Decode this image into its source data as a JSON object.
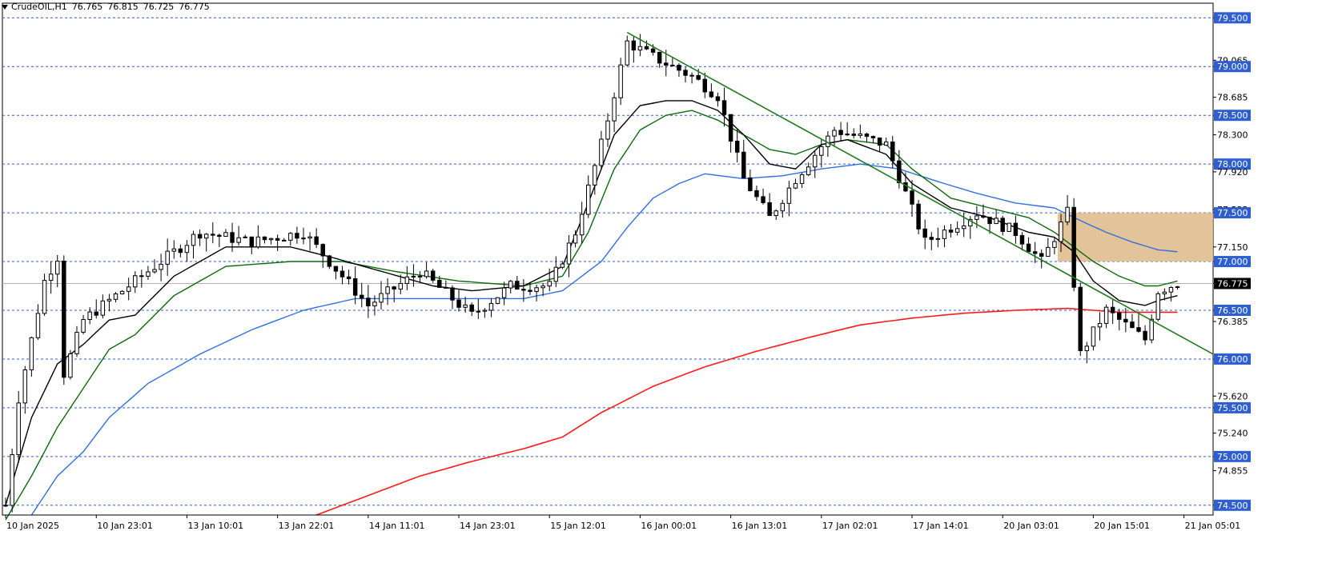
{
  "header": {
    "symbol": "CrudeOIL,H1",
    "open": "76.765",
    "high": "76.815",
    "low": "76.725",
    "close": "76.775"
  },
  "colors": {
    "background": "#ffffff",
    "grid": "#2e5fd1",
    "bull": "#000000",
    "bear": "#000000",
    "ema_fast": "#000000",
    "ema_mid": "#0a6a0a",
    "ema_slow": "#2f6fe0",
    "ema_long": "#ff1a1a",
    "trendline": "#1f7a1f",
    "zone": "#deb887",
    "current_price_label": "#000000"
  },
  "chart_data": {
    "type": "candlestick",
    "symbol": "CrudeOIL",
    "timeframe": "H1",
    "y_range": [
      74.4,
      79.65
    ],
    "current_price": 76.775,
    "price_ticks": [
      "79.500",
      "79.065",
      "79.000",
      "78.685",
      "78.500",
      "78.300",
      "78.000",
      "77.920",
      "77.535",
      "77.500",
      "77.150",
      "77.000",
      "76.775",
      "76.500",
      "76.385",
      "76.000",
      "75.620",
      "75.500",
      "75.240",
      "75.000",
      "74.855",
      "74.500"
    ],
    "level_ticks": [
      79.5,
      79.0,
      78.5,
      78.0,
      77.5,
      77.0,
      76.5,
      76.0,
      75.5,
      75.0,
      74.5
    ],
    "time_labels": [
      "10 Jan 2025",
      "10 Jan 23:01",
      "13 Jan 10:01",
      "13 Jan 22:01",
      "14 Jan 11:01",
      "14 Jan 23:01",
      "15 Jan 12:01",
      "16 Jan 00:01",
      "16 Jan 13:01",
      "17 Jan 02:01",
      "17 Jan 14:01",
      "20 Jan 03:01",
      "20 Jan 15:01",
      "21 Jan 05:01"
    ],
    "time_label_bars": [
      0,
      14,
      28,
      42,
      56,
      70,
      84,
      98,
      112,
      126,
      140,
      154,
      168,
      182
    ],
    "bar_count": 187,
    "price_path": [
      [
        0,
        74.5
      ],
      [
        2,
        75.6
      ],
      [
        6,
        76.8
      ],
      [
        8,
        77.05
      ],
      [
        9,
        75.85
      ],
      [
        12,
        76.4
      ],
      [
        16,
        76.6
      ],
      [
        22,
        76.9
      ],
      [
        30,
        77.3
      ],
      [
        38,
        77.2
      ],
      [
        46,
        77.3
      ],
      [
        56,
        76.55
      ],
      [
        64,
        76.9
      ],
      [
        72,
        76.45
      ],
      [
        78,
        76.75
      ],
      [
        84,
        76.75
      ],
      [
        88,
        77.3
      ],
      [
        92,
        78.2
      ],
      [
        96,
        79.25
      ],
      [
        100,
        79.1
      ],
      [
        106,
        78.9
      ],
      [
        110,
        78.7
      ],
      [
        114,
        77.85
      ],
      [
        118,
        77.45
      ],
      [
        122,
        77.85
      ],
      [
        128,
        78.35
      ],
      [
        136,
        78.2
      ],
      [
        142,
        77.2
      ],
      [
        146,
        77.35
      ],
      [
        150,
        77.5
      ],
      [
        156,
        77.3
      ],
      [
        160,
        77.0
      ],
      [
        164,
        77.5
      ],
      [
        166,
        76.05
      ],
      [
        170,
        76.5
      ],
      [
        176,
        76.2
      ],
      [
        178,
        76.7
      ],
      [
        181,
        76.78
      ]
    ],
    "ema_fast_path": [
      [
        0,
        74.5
      ],
      [
        4,
        75.4
      ],
      [
        8,
        75.95
      ],
      [
        12,
        76.15
      ],
      [
        16,
        76.4
      ],
      [
        20,
        76.45
      ],
      [
        26,
        76.85
      ],
      [
        34,
        77.15
      ],
      [
        44,
        77.15
      ],
      [
        50,
        77.05
      ],
      [
        58,
        76.9
      ],
      [
        66,
        76.75
      ],
      [
        72,
        76.7
      ],
      [
        80,
        76.75
      ],
      [
        86,
        76.95
      ],
      [
        90,
        77.6
      ],
      [
        94,
        78.3
      ],
      [
        98,
        78.6
      ],
      [
        102,
        78.65
      ],
      [
        106,
        78.65
      ],
      [
        110,
        78.55
      ],
      [
        114,
        78.3
      ],
      [
        118,
        78.0
      ],
      [
        122,
        77.95
      ],
      [
        126,
        78.2
      ],
      [
        130,
        78.25
      ],
      [
        136,
        78.1
      ],
      [
        140,
        77.8
      ],
      [
        146,
        77.55
      ],
      [
        152,
        77.45
      ],
      [
        158,
        77.3
      ],
      [
        162,
        77.25
      ],
      [
        165,
        77.1
      ],
      [
        168,
        76.8
      ],
      [
        172,
        76.6
      ],
      [
        176,
        76.55
      ],
      [
        178,
        76.6
      ],
      [
        181,
        76.65
      ]
    ],
    "ema_mid_path": [
      [
        0,
        74.35
      ],
      [
        4,
        74.8
      ],
      [
        8,
        75.3
      ],
      [
        12,
        75.7
      ],
      [
        16,
        76.1
      ],
      [
        20,
        76.25
      ],
      [
        26,
        76.65
      ],
      [
        34,
        76.95
      ],
      [
        44,
        77.0
      ],
      [
        52,
        77.0
      ],
      [
        60,
        76.9
      ],
      [
        70,
        76.8
      ],
      [
        80,
        76.75
      ],
      [
        86,
        76.85
      ],
      [
        90,
        77.3
      ],
      [
        94,
        77.95
      ],
      [
        98,
        78.35
      ],
      [
        102,
        78.5
      ],
      [
        106,
        78.55
      ],
      [
        110,
        78.45
      ],
      [
        114,
        78.3
      ],
      [
        118,
        78.15
      ],
      [
        122,
        78.1
      ],
      [
        126,
        78.2
      ],
      [
        130,
        78.25
      ],
      [
        136,
        78.2
      ],
      [
        140,
        77.95
      ],
      [
        146,
        77.65
      ],
      [
        152,
        77.55
      ],
      [
        158,
        77.45
      ],
      [
        162,
        77.3
      ],
      [
        165,
        77.15
      ],
      [
        168,
        77.0
      ],
      [
        172,
        76.85
      ],
      [
        176,
        76.75
      ],
      [
        178,
        76.75
      ],
      [
        181,
        76.8
      ]
    ],
    "ema_slow_path": [
      [
        4,
        74.4
      ],
      [
        8,
        74.8
      ],
      [
        12,
        75.05
      ],
      [
        16,
        75.4
      ],
      [
        22,
        75.75
      ],
      [
        30,
        76.05
      ],
      [
        38,
        76.3
      ],
      [
        46,
        76.5
      ],
      [
        54,
        76.62
      ],
      [
        62,
        76.62
      ],
      [
        72,
        76.62
      ],
      [
        80,
        76.62
      ],
      [
        86,
        76.7
      ],
      [
        92,
        77.0
      ],
      [
        96,
        77.35
      ],
      [
        100,
        77.65
      ],
      [
        104,
        77.8
      ],
      [
        108,
        77.9
      ],
      [
        114,
        77.85
      ],
      [
        120,
        77.88
      ],
      [
        126,
        77.95
      ],
      [
        132,
        78.0
      ],
      [
        138,
        77.95
      ],
      [
        144,
        77.82
      ],
      [
        150,
        77.7
      ],
      [
        156,
        77.6
      ],
      [
        162,
        77.55
      ],
      [
        166,
        77.42
      ],
      [
        170,
        77.3
      ],
      [
        174,
        77.2
      ],
      [
        178,
        77.12
      ],
      [
        181,
        77.1
      ]
    ],
    "ema_long_path": [
      [
        48,
        74.4
      ],
      [
        56,
        74.6
      ],
      [
        64,
        74.8
      ],
      [
        72,
        74.95
      ],
      [
        80,
        75.08
      ],
      [
        86,
        75.2
      ],
      [
        92,
        75.45
      ],
      [
        100,
        75.72
      ],
      [
        108,
        75.92
      ],
      [
        116,
        76.08
      ],
      [
        124,
        76.22
      ],
      [
        132,
        76.35
      ],
      [
        140,
        76.42
      ],
      [
        148,
        76.47
      ],
      [
        156,
        76.5
      ],
      [
        164,
        76.52
      ],
      [
        172,
        76.48
      ],
      [
        181,
        76.48
      ]
    ],
    "trendline": {
      "from": [
        96,
        79.35
      ],
      "to": [
        224,
        76.05
      ]
    },
    "zone": {
      "from_bar": 163,
      "to_bar": 187,
      "low": 77.0,
      "high": 77.5
    }
  }
}
